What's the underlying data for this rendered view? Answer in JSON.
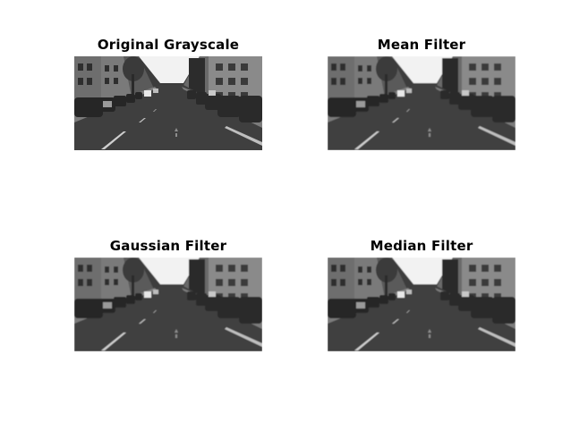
{
  "figure": {
    "panels": [
      {
        "title": "Original Grayscale",
        "filter": "none"
      },
      {
        "title": "Mean Filter",
        "filter": "mean"
      },
      {
        "title": "Gaussian Filter",
        "filter": "gaussian"
      },
      {
        "title": "Median Filter",
        "filter": "median"
      }
    ]
  }
}
